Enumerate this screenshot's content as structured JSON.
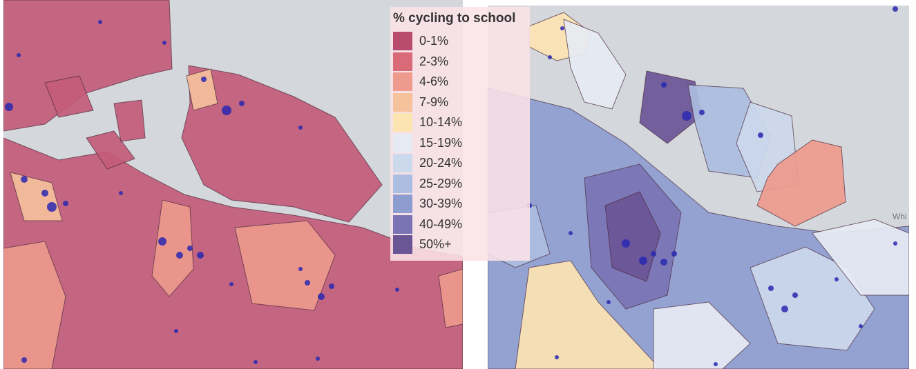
{
  "legend": {
    "title": "% cycling to school",
    "items": [
      {
        "label": "0-1%",
        "color": "#b94c6e"
      },
      {
        "label": "2-3%",
        "color": "#d96a78"
      },
      {
        "label": "4-6%",
        "color": "#ee9a8c"
      },
      {
        "label": "7-9%",
        "color": "#f6c29c"
      },
      {
        "label": "10-14%",
        "color": "#fbe3b2"
      },
      {
        "label": "15-19%",
        "color": "#e6eaf3"
      },
      {
        "label": "20-24%",
        "color": "#ccd8ec"
      },
      {
        "label": "25-29%",
        "color": "#abbde0"
      },
      {
        "label": "30-39%",
        "color": "#8e9dd0"
      },
      {
        "label": "40-49%",
        "color": "#7a74b4"
      },
      {
        "label": "50%+",
        "color": "#6a5595"
      }
    ]
  },
  "map_labels": [
    "Whi"
  ]
}
